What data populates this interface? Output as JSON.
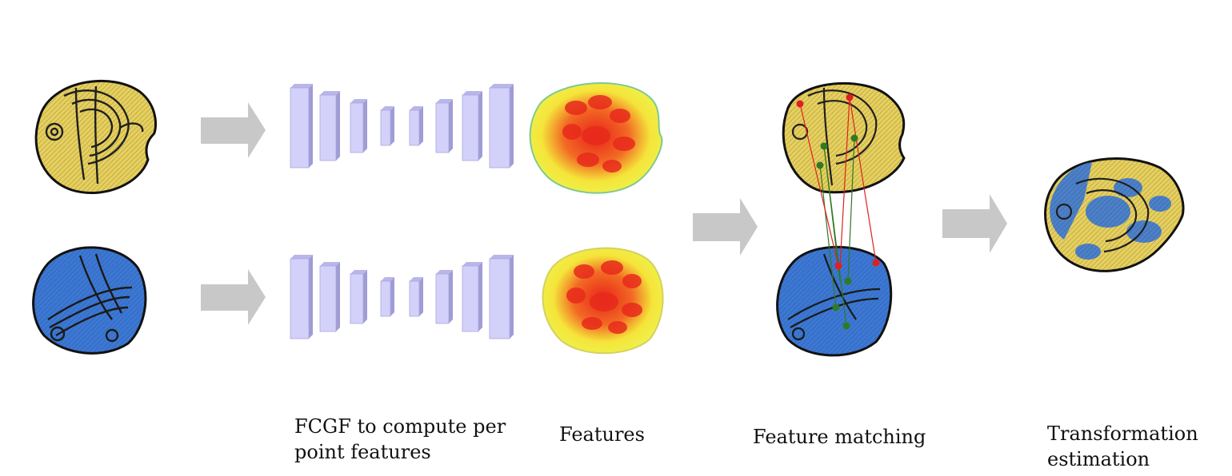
{
  "captions": {
    "fcgf": [
      "FCGF to compute per",
      "point features"
    ],
    "features": [
      "Features"
    ],
    "matching": [
      "Feature matching"
    ],
    "transformation": [
      "Transformation",
      "estimation"
    ]
  },
  "colors": {
    "source_cloud": "#e6cf5c",
    "target_cloud": "#3b78d6",
    "outline": "#111111",
    "arrow": "#c8c8c8",
    "layer_face": "#d3d1fa",
    "layer_side": "#9f9cd6",
    "feature_low": "#f3f03a",
    "feature_high": "#e8241a",
    "match_inlier": "#2f7a22",
    "match_outlier": "#e02020"
  },
  "icons": [
    "source-point-cloud",
    "target-point-cloud",
    "network-layer",
    "flow-arrow",
    "feature-map",
    "match-line",
    "registered-point-cloud"
  ]
}
